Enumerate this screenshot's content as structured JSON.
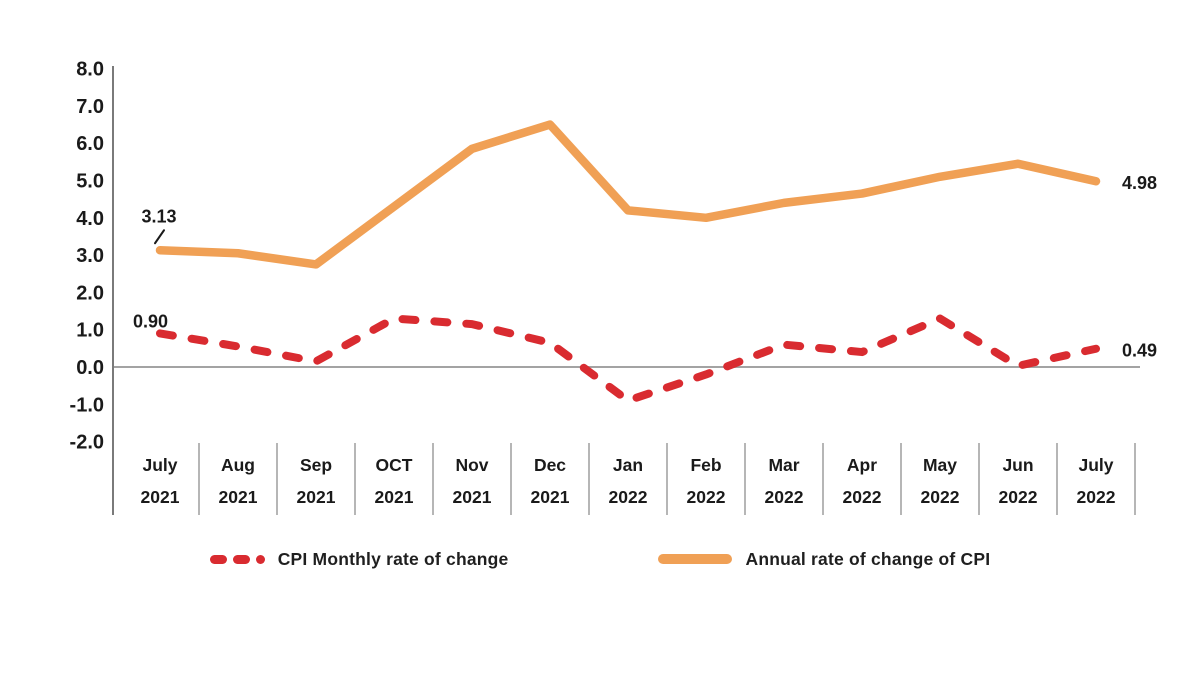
{
  "chart_data": {
    "type": "line",
    "x_categories": [
      {
        "month": "July",
        "year": "2021"
      },
      {
        "month": "Aug",
        "year": "2021"
      },
      {
        "month": "Sep",
        "year": "2021"
      },
      {
        "month": "OCT",
        "year": "2021"
      },
      {
        "month": "Nov",
        "year": "2021"
      },
      {
        "month": "Dec",
        "year": "2021"
      },
      {
        "month": "Jan",
        "year": "2022"
      },
      {
        "month": "Feb",
        "year": "2022"
      },
      {
        "month": "Mar",
        "year": "2022"
      },
      {
        "month": "Apr",
        "year": "2022"
      },
      {
        "month": "May",
        "year": "2022"
      },
      {
        "month": "Jun",
        "year": "2022"
      },
      {
        "month": "July",
        "year": "2022"
      }
    ],
    "y_ticks": [
      "8.0",
      "7.0",
      "6.0",
      "5.0",
      "4.0",
      "3.0",
      "2.0",
      "1.0",
      "0.0",
      "-1.0",
      "-2.0"
    ],
    "ylim": [
      -2.0,
      8.0
    ],
    "grid": "zero-baseline-only",
    "series": [
      {
        "name": "CPI Monthly rate of change",
        "style": "dashed",
        "color": "#d92b30",
        "values": [
          0.9,
          0.55,
          0.15,
          1.3,
          1.15,
          0.65,
          -0.9,
          -0.2,
          0.6,
          0.4,
          1.3,
          0.03,
          0.49
        ]
      },
      {
        "name": "Annual rate of change of CPI",
        "style": "solid",
        "color": "#f0a055",
        "values": [
          3.13,
          3.05,
          2.75,
          4.3,
          5.85,
          6.5,
          4.2,
          4.0,
          4.4,
          4.65,
          5.1,
          5.45,
          4.98
        ]
      }
    ],
    "annotations": [
      {
        "text": "0.90",
        "series": 0,
        "point": "first",
        "placement": "above-left"
      },
      {
        "text": "0.49",
        "series": 0,
        "point": "last",
        "placement": "right"
      },
      {
        "text": "3.13",
        "series": 1,
        "point": "first",
        "placement": "above-with-slash"
      },
      {
        "text": "4.98",
        "series": 1,
        "point": "last",
        "placement": "right"
      }
    ],
    "legend": [
      {
        "label": "CPI Monthly rate of change"
      },
      {
        "label": "Annual rate of change of CPI"
      }
    ],
    "legend_position": "bottom-center"
  },
  "colors": {
    "monthly_series": "#d92b30",
    "annual_series": "#f0a055",
    "axis_line": "#7a7a7a",
    "zero_line": "#a3a3a3",
    "divider_line": "#9e9e9e",
    "text": "#1a1a1a",
    "background": "#ffffff"
  }
}
